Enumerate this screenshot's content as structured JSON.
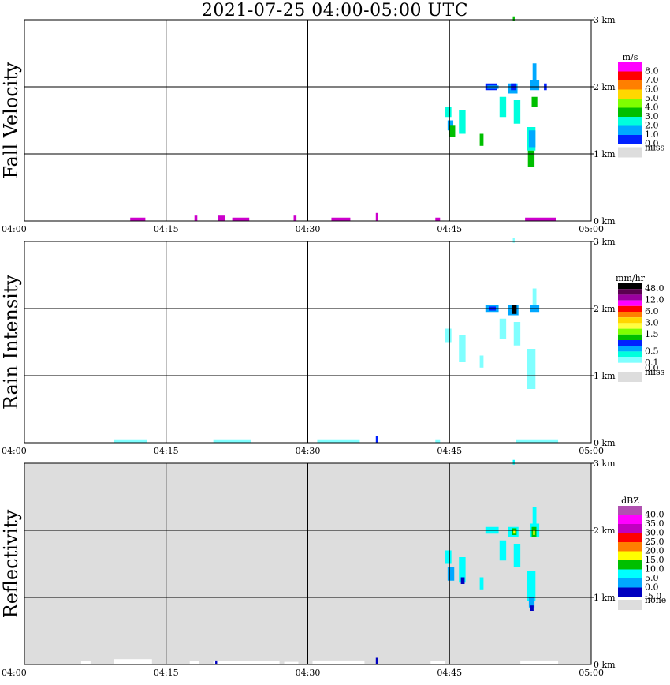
{
  "title": "2021-07-25   04:00-05:00 UTC",
  "chart_data": [
    {
      "type": "heatmap",
      "id": "fall",
      "ylabel": "Fall Velocity",
      "unit": "m/s",
      "x_ticks": [
        "04:00",
        "04:15",
        "04:30",
        "04:45",
        "05:00"
      ],
      "y_ticks": [
        "1 km",
        "2 km",
        "3 km"
      ],
      "y_zero_label": "0 km",
      "xlim_minutes": [
        0,
        60
      ],
      "ylim_km": [
        0,
        3.0
      ],
      "grid": true,
      "background_color": "#ffffff",
      "legend": [
        {
          "label": "8.0",
          "color": "#ff00ff"
        },
        {
          "label": "7.0",
          "color": "#ff0000"
        },
        {
          "label": "6.0",
          "color": "#ff7f00"
        },
        {
          "label": "5.0",
          "color": "#ffd700"
        },
        {
          "label": "4.0",
          "color": "#7fff00"
        },
        {
          "label": "3.0",
          "color": "#00bf00"
        },
        {
          "label": "2.0",
          "color": "#00ffdd"
        },
        {
          "label": "1.0",
          "color": "#00a8ff"
        },
        {
          "label": "0.0",
          "color": "#0020ff"
        },
        {
          "label": "miss",
          "color": "#dddddd"
        }
      ],
      "echoes": [
        {
          "t0": 44.5,
          "t1": 45.2,
          "h0": 1.7,
          "h1": 1.55,
          "color": "#00ffdd"
        },
        {
          "t0": 44.8,
          "t1": 45.4,
          "h0": 1.5,
          "h1": 1.35,
          "color": "#00a8ff"
        },
        {
          "t0": 45.0,
          "t1": 45.6,
          "h0": 1.42,
          "h1": 1.25,
          "color": "#00bf00"
        },
        {
          "t0": 46.0,
          "t1": 46.7,
          "h0": 1.65,
          "h1": 1.3,
          "color": "#00ffdd"
        },
        {
          "t0": 48.8,
          "t1": 50.0,
          "h0": 2.05,
          "h1": 1.95,
          "color": "#0020ff"
        },
        {
          "t0": 49.0,
          "t1": 50.2,
          "h0": 2.02,
          "h1": 1.97,
          "color": "#00a8ff"
        },
        {
          "t0": 51.2,
          "t1": 52.2,
          "h0": 2.05,
          "h1": 1.9,
          "color": "#00a8ff"
        },
        {
          "t0": 51.5,
          "t1": 52.0,
          "h0": 2.05,
          "h1": 1.95,
          "color": "#0020ff"
        },
        {
          "t0": 53.5,
          "t1": 54.5,
          "h0": 2.1,
          "h1": 1.95,
          "color": "#00a8ff"
        },
        {
          "t0": 53.8,
          "t1": 54.2,
          "h0": 2.35,
          "h1": 2.1,
          "color": "#00a8ff"
        },
        {
          "t0": 55.0,
          "t1": 55.3,
          "h0": 2.05,
          "h1": 1.95,
          "color": "#0020ff"
        },
        {
          "t0": 50.3,
          "t1": 51.0,
          "h0": 1.85,
          "h1": 1.55,
          "color": "#00ffdd"
        },
        {
          "t0": 51.8,
          "t1": 52.5,
          "h0": 1.8,
          "h1": 1.45,
          "color": "#00ffdd"
        },
        {
          "t0": 53.7,
          "t1": 54.3,
          "h0": 1.85,
          "h1": 1.7,
          "color": "#00bf00"
        },
        {
          "t0": 48.2,
          "t1": 48.6,
          "h0": 1.3,
          "h1": 1.12,
          "color": "#00bf00"
        },
        {
          "t0": 53.2,
          "t1": 54.1,
          "h0": 1.4,
          "h1": 1.05,
          "color": "#00ffdd"
        },
        {
          "t0": 53.4,
          "t1": 54.1,
          "h0": 1.35,
          "h1": 1.1,
          "color": "#00a8ff"
        },
        {
          "t0": 53.3,
          "t1": 54.0,
          "h0": 1.05,
          "h1": 0.8,
          "color": "#00bf00"
        },
        {
          "t0": 51.7,
          "t1": 51.9,
          "h0": 3.05,
          "h1": 2.98,
          "color": "#00bf00"
        },
        {
          "t0": 11.2,
          "t1": 12.8,
          "h0": 0.05,
          "h1": 0.0,
          "color": "#cc00cc"
        },
        {
          "t0": 18.0,
          "t1": 18.3,
          "h0": 0.08,
          "h1": 0.0,
          "color": "#cc00cc"
        },
        {
          "t0": 20.5,
          "t1": 21.2,
          "h0": 0.08,
          "h1": 0.0,
          "color": "#cc00cc"
        },
        {
          "t0": 22.0,
          "t1": 23.8,
          "h0": 0.05,
          "h1": 0.0,
          "color": "#cc00cc"
        },
        {
          "t0": 28.5,
          "t1": 28.8,
          "h0": 0.08,
          "h1": 0.0,
          "color": "#cc00cc"
        },
        {
          "t0": 32.5,
          "t1": 34.5,
          "h0": 0.05,
          "h1": 0.0,
          "color": "#cc00cc"
        },
        {
          "t0": 37.2,
          "t1": 37.4,
          "h0": 0.12,
          "h1": 0.0,
          "color": "#cc00cc"
        },
        {
          "t0": 43.5,
          "t1": 44.0,
          "h0": 0.05,
          "h1": 0.0,
          "color": "#cc00cc"
        },
        {
          "t0": 53.0,
          "t1": 56.3,
          "h0": 0.05,
          "h1": 0.0,
          "color": "#cc00cc"
        }
      ]
    },
    {
      "type": "heatmap",
      "id": "rain",
      "ylabel": "Rain Intensity",
      "unit": "mm/hr",
      "x_ticks": [
        "04:00",
        "04:15",
        "04:30",
        "04:45",
        "05:00"
      ],
      "y_ticks": [
        "1 km",
        "2 km",
        "3 km"
      ],
      "y_zero_label": "0 km",
      "xlim_minutes": [
        0,
        60
      ],
      "ylim_km": [
        0,
        3.0
      ],
      "grid": true,
      "background_color": "#ffffff",
      "legend": [
        {
          "label": "48.0",
          "color": "#000000"
        },
        {
          "label": "",
          "color": "#5a0050"
        },
        {
          "label": "12.0",
          "color": "#9a00a0"
        },
        {
          "label": "",
          "color": "#ff00ff"
        },
        {
          "label": "6.0",
          "color": "#ff0000"
        },
        {
          "label": "",
          "color": "#ff7f00"
        },
        {
          "label": "3.0",
          "color": "#ffd700"
        },
        {
          "label": "",
          "color": "#ffff40"
        },
        {
          "label": "1.5",
          "color": "#7fff00"
        },
        {
          "label": "",
          "color": "#00bf00"
        },
        {
          "label": "",
          "color": "#0020ff"
        },
        {
          "label": "0.5",
          "color": "#00a8ff"
        },
        {
          "label": "",
          "color": "#00ffdd"
        },
        {
          "label": "0.1",
          "color": "#80ffff"
        },
        {
          "label": "0.0",
          "color": "#ffffff"
        },
        {
          "label": "miss",
          "color": "#dddddd"
        }
      ],
      "echoes": [
        {
          "t0": 44.5,
          "t1": 45.2,
          "h0": 1.7,
          "h1": 1.5,
          "color": "#80ffff"
        },
        {
          "t0": 46.0,
          "t1": 46.7,
          "h0": 1.6,
          "h1": 1.2,
          "color": "#80ffff"
        },
        {
          "t0": 48.8,
          "t1": 50.2,
          "h0": 2.05,
          "h1": 1.95,
          "color": "#00a8ff"
        },
        {
          "t0": 49.2,
          "t1": 49.9,
          "h0": 2.03,
          "h1": 1.97,
          "color": "#0020ff"
        },
        {
          "t0": 51.2,
          "t1": 52.3,
          "h0": 2.05,
          "h1": 1.9,
          "color": "#00a8ff"
        },
        {
          "t0": 51.6,
          "t1": 52.1,
          "h0": 2.05,
          "h1": 1.92,
          "color": "#000000"
        },
        {
          "t0": 53.5,
          "t1": 54.5,
          "h0": 2.05,
          "h1": 1.95,
          "color": "#00a8ff"
        },
        {
          "t0": 53.8,
          "t1": 54.2,
          "h0": 2.3,
          "h1": 2.05,
          "color": "#80ffff"
        },
        {
          "t0": 50.3,
          "t1": 51.0,
          "h0": 1.85,
          "h1": 1.55,
          "color": "#80ffff"
        },
        {
          "t0": 51.8,
          "t1": 52.5,
          "h0": 1.8,
          "h1": 1.45,
          "color": "#80ffff"
        },
        {
          "t0": 53.2,
          "t1": 54.1,
          "h0": 1.4,
          "h1": 0.8,
          "color": "#80ffff"
        },
        {
          "t0": 48.2,
          "t1": 48.6,
          "h0": 1.3,
          "h1": 1.12,
          "color": "#80ffff"
        },
        {
          "t0": 51.7,
          "t1": 51.9,
          "h0": 3.05,
          "h1": 2.98,
          "color": "#80ffff"
        },
        {
          "t0": 9.5,
          "t1": 13.0,
          "h0": 0.05,
          "h1": 0.0,
          "color": "#80ffff"
        },
        {
          "t0": 20.0,
          "t1": 24.0,
          "h0": 0.05,
          "h1": 0.0,
          "color": "#80ffff"
        },
        {
          "t0": 31.0,
          "t1": 35.5,
          "h0": 0.05,
          "h1": 0.0,
          "color": "#80ffff"
        },
        {
          "t0": 37.2,
          "t1": 37.4,
          "h0": 0.1,
          "h1": 0.0,
          "color": "#0020ff"
        },
        {
          "t0": 43.5,
          "t1": 44.0,
          "h0": 0.05,
          "h1": 0.0,
          "color": "#80ffff"
        },
        {
          "t0": 52.0,
          "t1": 56.5,
          "h0": 0.05,
          "h1": 0.0,
          "color": "#80ffff"
        }
      ]
    },
    {
      "type": "heatmap",
      "id": "refl",
      "ylabel": "Reflectivity",
      "unit": "dBZ",
      "x_ticks": [
        "04:00",
        "04:15",
        "04:30",
        "04:45",
        "05:00"
      ],
      "y_ticks": [
        "1 km",
        "2 km",
        "3 km"
      ],
      "y_zero_label": "0 km",
      "xlim_minutes": [
        0,
        60
      ],
      "ylim_km": [
        0,
        3.0
      ],
      "grid": true,
      "background_color": "#dddddd",
      "legend": [
        {
          "label": "40.0",
          "color": "#b050b0"
        },
        {
          "label": "35.0",
          "color": "#ff00ff"
        },
        {
          "label": "30.0",
          "color": "#c000c0"
        },
        {
          "label": "25.0",
          "color": "#ff0000"
        },
        {
          "label": "20.0",
          "color": "#ff7f00"
        },
        {
          "label": "15.0",
          "color": "#ffff00"
        },
        {
          "label": "10.0",
          "color": "#00bf00"
        },
        {
          "label": "5.0",
          "color": "#00ffff"
        },
        {
          "label": "0.0",
          "color": "#00a8ff"
        },
        {
          "label": "-5.0",
          "color": "#0000c0"
        },
        {
          "label": "none",
          "color": "#dddddd"
        }
      ],
      "echoes": [
        {
          "t0": 44.5,
          "t1": 45.2,
          "h0": 1.7,
          "h1": 1.5,
          "color": "#00ffff"
        },
        {
          "t0": 44.8,
          "t1": 45.5,
          "h0": 1.45,
          "h1": 1.25,
          "color": "#00a8ff"
        },
        {
          "t0": 46.0,
          "t1": 46.7,
          "h0": 1.6,
          "h1": 1.22,
          "color": "#00ffff"
        },
        {
          "t0": 46.2,
          "t1": 46.6,
          "h0": 1.3,
          "h1": 1.2,
          "color": "#0000c0"
        },
        {
          "t0": 48.8,
          "t1": 50.2,
          "h0": 2.05,
          "h1": 1.95,
          "color": "#00ffff"
        },
        {
          "t0": 51.2,
          "t1": 52.3,
          "h0": 2.05,
          "h1": 1.9,
          "color": "#00ffff"
        },
        {
          "t0": 51.6,
          "t1": 52.1,
          "h0": 2.03,
          "h1": 1.93,
          "color": "#00bf00"
        },
        {
          "t0": 51.75,
          "t1": 51.95,
          "h0": 2.0,
          "h1": 1.95,
          "color": "#ffff00"
        },
        {
          "t0": 53.5,
          "t1": 54.5,
          "h0": 2.1,
          "h1": 1.9,
          "color": "#00ffff"
        },
        {
          "t0": 53.7,
          "t1": 54.2,
          "h0": 2.05,
          "h1": 1.9,
          "color": "#00bf00"
        },
        {
          "t0": 53.85,
          "t1": 54.05,
          "h0": 2.0,
          "h1": 1.93,
          "color": "#ffff00"
        },
        {
          "t0": 53.8,
          "t1": 54.2,
          "h0": 2.35,
          "h1": 2.1,
          "color": "#00ffff"
        },
        {
          "t0": 50.3,
          "t1": 51.0,
          "h0": 1.85,
          "h1": 1.55,
          "color": "#00ffff"
        },
        {
          "t0": 51.8,
          "t1": 52.5,
          "h0": 1.8,
          "h1": 1.45,
          "color": "#00ffff"
        },
        {
          "t0": 53.2,
          "t1": 54.1,
          "h0": 1.4,
          "h1": 0.95,
          "color": "#00ffff"
        },
        {
          "t0": 53.4,
          "t1": 54.0,
          "h0": 1.0,
          "h1": 0.85,
          "color": "#00a8ff"
        },
        {
          "t0": 53.5,
          "t1": 53.9,
          "h0": 0.88,
          "h1": 0.8,
          "color": "#0000c0"
        },
        {
          "t0": 48.2,
          "t1": 48.6,
          "h0": 1.3,
          "h1": 1.12,
          "color": "#00ffff"
        },
        {
          "t0": 51.7,
          "t1": 51.9,
          "h0": 3.05,
          "h1": 2.98,
          "color": "#00ffff"
        },
        {
          "t0": 6.0,
          "t1": 7.0,
          "h0": 0.05,
          "h1": 0.0,
          "color": "#ffffff"
        },
        {
          "t0": 9.5,
          "t1": 13.5,
          "h0": 0.08,
          "h1": 0.0,
          "color": "#ffffff"
        },
        {
          "t0": 17.5,
          "t1": 18.5,
          "h0": 0.05,
          "h1": 0.0,
          "color": "#ffffff"
        },
        {
          "t0": 20.0,
          "t1": 27.0,
          "h0": 0.05,
          "h1": 0.0,
          "color": "#ffffff"
        },
        {
          "t0": 20.2,
          "t1": 20.4,
          "h0": 0.06,
          "h1": 0.0,
          "color": "#0000c0"
        },
        {
          "t0": 27.5,
          "t1": 29.0,
          "h0": 0.04,
          "h1": 0.0,
          "color": "#ffffff"
        },
        {
          "t0": 30.5,
          "t1": 36.0,
          "h0": 0.06,
          "h1": 0.0,
          "color": "#ffffff"
        },
        {
          "t0": 37.2,
          "t1": 37.4,
          "h0": 0.1,
          "h1": 0.0,
          "color": "#0000c0"
        },
        {
          "t0": 43.0,
          "t1": 44.5,
          "h0": 0.05,
          "h1": 0.0,
          "color": "#ffffff"
        },
        {
          "t0": 52.5,
          "t1": 56.5,
          "h0": 0.06,
          "h1": 0.0,
          "color": "#ffffff"
        }
      ]
    }
  ]
}
